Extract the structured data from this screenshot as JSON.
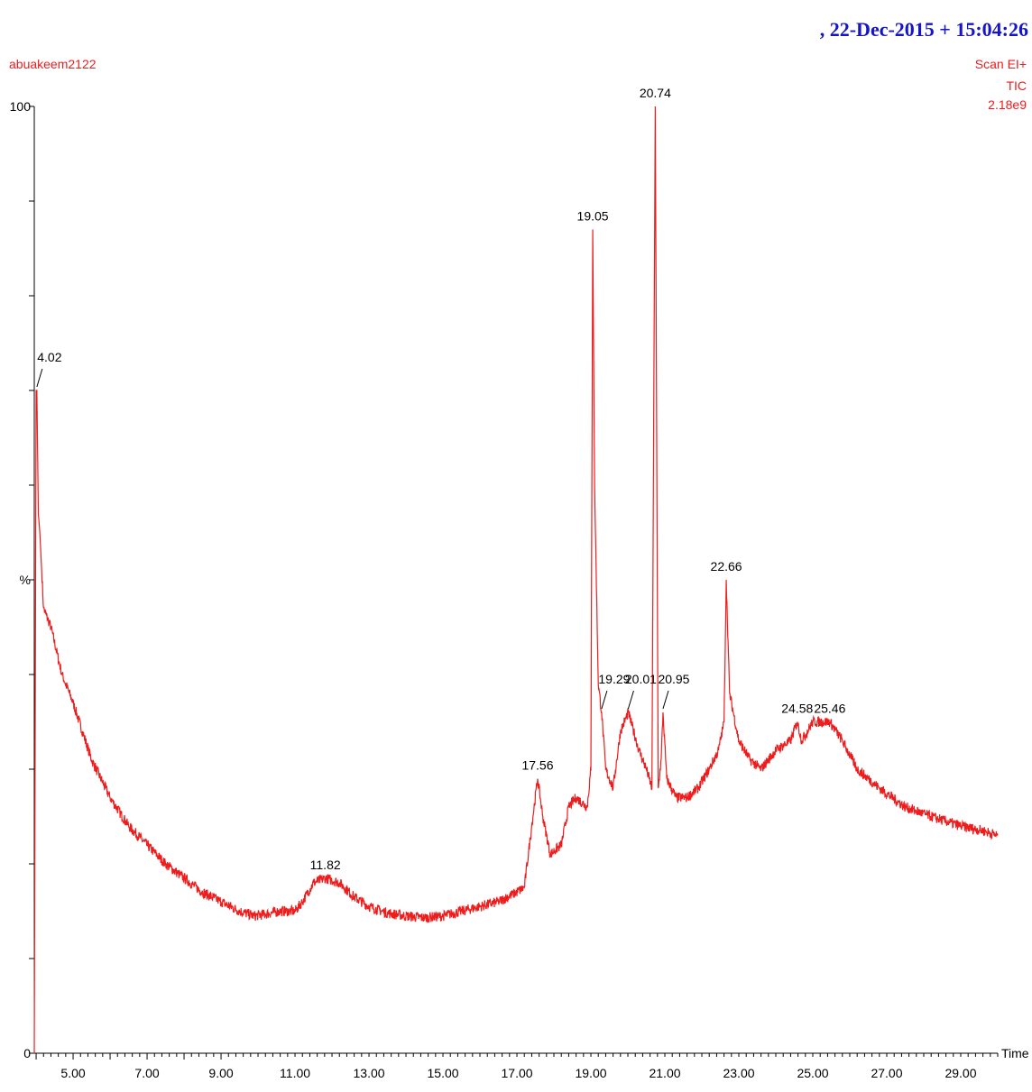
{
  "header": {
    "timestamp": ",  22-Dec-2015 + 15:04:26",
    "sample_name": "abuakeem2122",
    "scan_mode": "Scan EI+",
    "trace": "TIC",
    "intensity": "2.18e9"
  },
  "colors": {
    "trace": "#ee1c1c",
    "timestamp": "#1414c8",
    "axis": "#000000"
  },
  "chart_data": {
    "type": "line",
    "xlabel": "Time",
    "ylabel": "%",
    "xlim": [
      3.95,
      30.0
    ],
    "ylim": [
      0,
      100
    ],
    "x_ticks": [
      "5.00",
      "7.00",
      "9.00",
      "11.00",
      "13.00",
      "15.00",
      "17.00",
      "19.00",
      "21.00",
      "23.00",
      "25.00",
      "27.00",
      "29.00"
    ],
    "y_tick_labels": [
      "0",
      "%",
      "100"
    ],
    "series": [
      {
        "x": [
          3.95,
          4.0,
          4.02,
          4.06,
          4.1,
          4.2,
          4.4,
          4.7,
          5.0,
          5.5,
          6.0,
          6.5,
          7.0,
          7.5,
          8.0,
          8.5,
          9.0,
          9.5,
          9.9,
          10.2,
          10.6,
          11.0,
          11.2,
          11.5,
          11.82,
          12.2,
          12.6,
          13.0,
          13.5,
          14.0,
          14.5,
          15.0,
          15.5,
          16.0,
          16.5,
          16.9,
          17.2,
          17.4,
          17.56,
          17.7,
          17.9,
          18.2,
          18.4,
          18.6,
          18.9,
          19.0,
          19.05,
          19.1,
          19.2,
          19.29,
          19.4,
          19.6,
          19.8,
          20.01,
          20.3,
          20.5,
          20.65,
          20.74,
          20.82,
          20.9,
          20.95,
          21.05,
          21.3,
          21.6,
          21.9,
          22.2,
          22.45,
          22.6,
          22.66,
          22.75,
          23.0,
          23.3,
          23.6,
          24.0,
          24.4,
          24.58,
          24.7,
          25.0,
          25.46,
          25.8,
          26.2,
          26.8,
          27.5,
          28.2,
          29.0,
          29.6,
          30.0
        ],
        "y": [
          0,
          70,
          70,
          57,
          55,
          47,
          45,
          40,
          37,
          31,
          27,
          24,
          22,
          20,
          18.5,
          17,
          16,
          15,
          14.5,
          14.7,
          15,
          15,
          16,
          18,
          18.5,
          18,
          16.5,
          15.5,
          14.8,
          14.5,
          14.3,
          14.5,
          15,
          15.5,
          16,
          16.8,
          17.5,
          24,
          29,
          25,
          21,
          22,
          26,
          27,
          26,
          30,
          87,
          60,
          39,
          36,
          30,
          28,
          34,
          36,
          32,
          30,
          28,
          100,
          28,
          31,
          36,
          29,
          27,
          27,
          28,
          30,
          32,
          35,
          50,
          38,
          33,
          31,
          30,
          32,
          33,
          35,
          33,
          35,
          35,
          33,
          30,
          28,
          26,
          25,
          24,
          23.5,
          23
        ]
      }
    ],
    "peaks": [
      {
        "x": 4.02,
        "label": "4.02"
      },
      {
        "x": 11.82,
        "label": "11.82"
      },
      {
        "x": 17.56,
        "label": "17.56"
      },
      {
        "x": 19.05,
        "label": "19.05"
      },
      {
        "x": 19.29,
        "label": "19.29"
      },
      {
        "x": 20.01,
        "label": "20.01"
      },
      {
        "x": 20.74,
        "label": "20.74"
      },
      {
        "x": 20.95,
        "label": "20.95"
      },
      {
        "x": 22.66,
        "label": "22.66"
      },
      {
        "x": 24.58,
        "label": "24.58"
      },
      {
        "x": 25.46,
        "label": "25.46"
      }
    ]
  }
}
